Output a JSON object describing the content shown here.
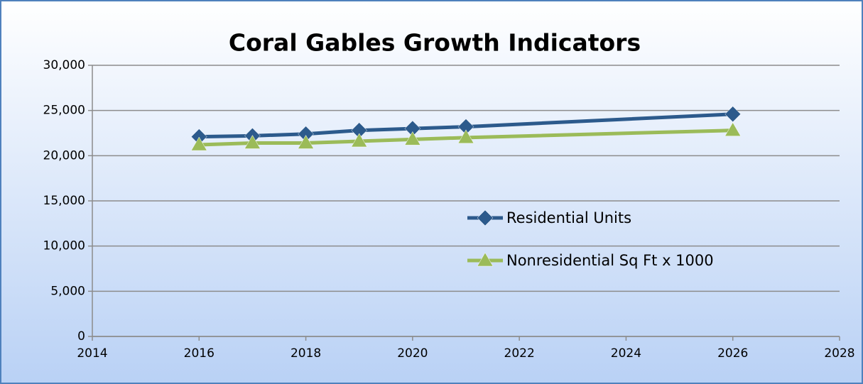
{
  "chart_data": {
    "type": "line",
    "title": "Coral Gables Growth Indicators",
    "x": [
      2016,
      2017,
      2018,
      2019,
      2020,
      2021,
      2026
    ],
    "series": [
      {
        "name": "Residential Units",
        "color": "#2c5a8c",
        "marker": "diamond",
        "values": [
          22100,
          22200,
          22400,
          22800,
          23000,
          23200,
          24600
        ]
      },
      {
        "name": "Nonresidential Sq Ft x 1000",
        "color": "#9bbb59",
        "marker": "triangle",
        "values": [
          21200,
          21400,
          21400,
          21600,
          21800,
          22000,
          22800
        ]
      }
    ],
    "xlim": [
      2014,
      2028
    ],
    "xticks": [
      2014,
      2016,
      2018,
      2020,
      2022,
      2024,
      2026,
      2028
    ],
    "ylim": [
      0,
      30000
    ],
    "yticks": [
      0,
      {
        "value": 5000,
        "label": "5,000"
      },
      {
        "value": 10000,
        "label": "10,000"
      },
      {
        "value": 15000,
        "label": "15,000"
      },
      {
        "value": 20000,
        "label": "20,000"
      },
      {
        "value": 25000,
        "label": "25,000"
      },
      {
        "value": 30000,
        "label": "30,000"
      }
    ],
    "grid": true
  }
}
